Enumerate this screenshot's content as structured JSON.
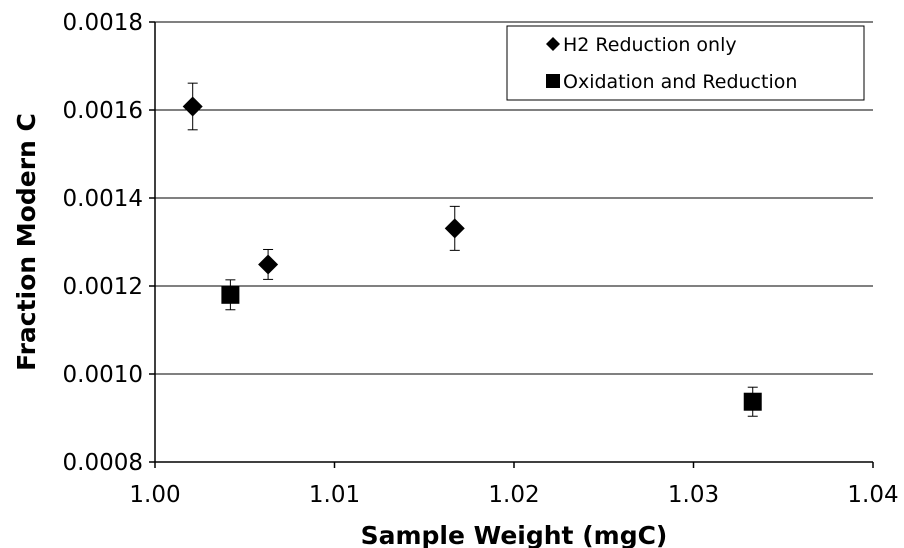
{
  "chart_data": {
    "type": "scatter",
    "title": "",
    "xlabel": "Sample Weight (mgC)",
    "ylabel": "Fraction Modern C",
    "xlim": [
      1.0,
      1.04
    ],
    "ylim": [
      0.0008,
      0.0018
    ],
    "x_ticks": [
      "1.00",
      "1.01",
      "1.02",
      "1.03",
      "1.04"
    ],
    "y_ticks": [
      "0.0008",
      "0.0010",
      "0.0012",
      "0.0014",
      "0.0016",
      "0.0018"
    ],
    "grid": "horizontal",
    "legend_position": "top-right",
    "series": [
      {
        "name": "H2 Reduction only",
        "marker": "diamond",
        "color": "#000000",
        "points": [
          {
            "x": 1.0021,
            "y": 0.001608,
            "err": 5.3e-05
          },
          {
            "x": 1.0063,
            "y": 0.001249,
            "err": 3.4e-05
          },
          {
            "x": 1.0167,
            "y": 0.001331,
            "err": 5e-05
          }
        ]
      },
      {
        "name": "Oxidation and Reduction",
        "marker": "square",
        "color": "#000000",
        "points": [
          {
            "x": 1.0042,
            "y": 0.00118,
            "err": 3.4e-05
          },
          {
            "x": 1.0333,
            "y": 0.000937,
            "err": 3.3e-05
          }
        ]
      }
    ]
  }
}
